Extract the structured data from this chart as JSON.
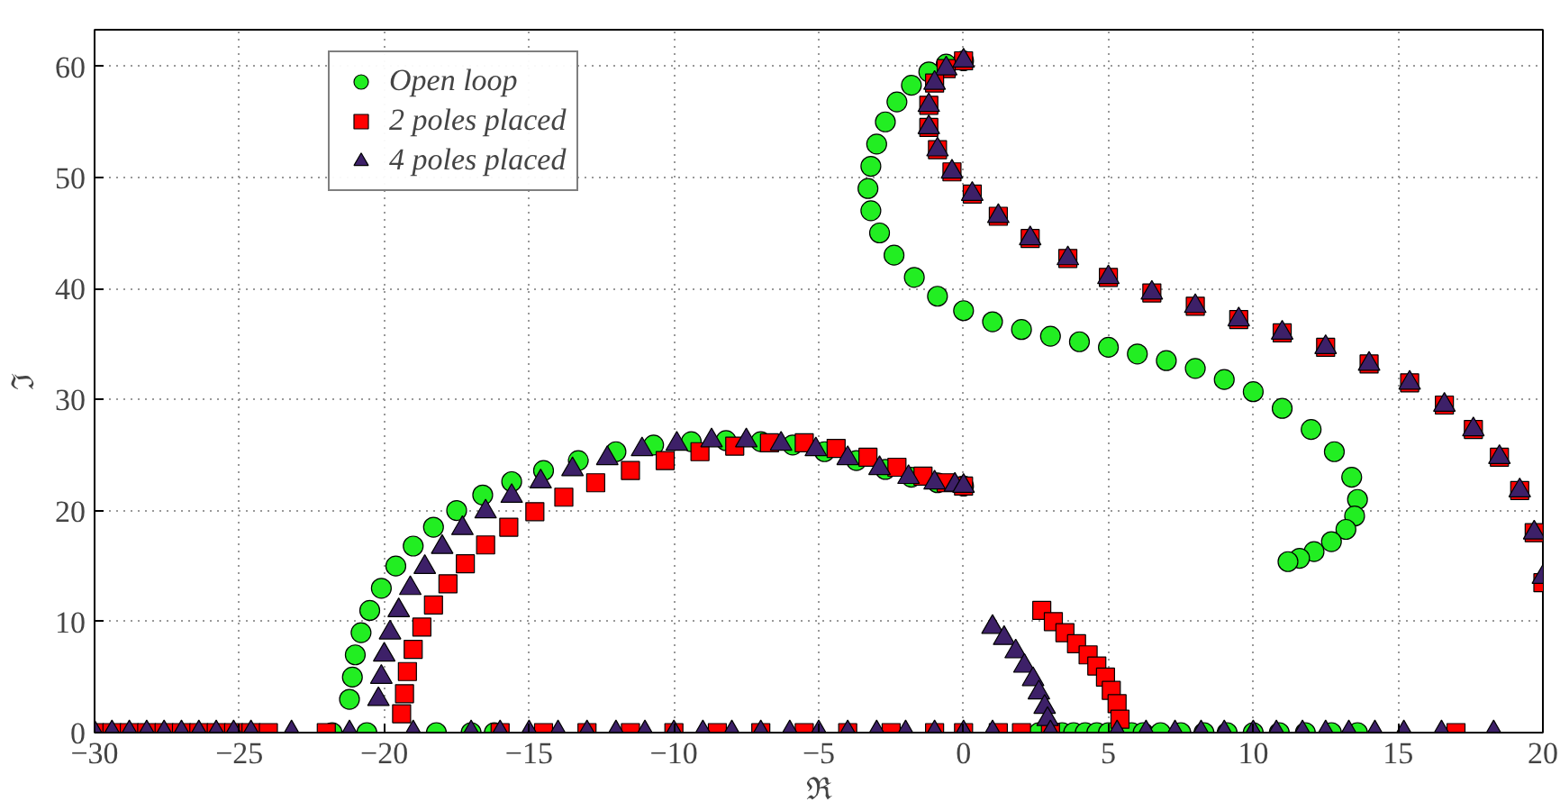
{
  "chart_data": {
    "type": "scatter",
    "xlabel": "ℜ",
    "ylabel": "ℑ",
    "xlim": [
      -30,
      20
    ],
    "ylim": [
      0,
      63.3
    ],
    "xticks": [
      -30,
      -25,
      -20,
      -15,
      -10,
      -5,
      0,
      5,
      10,
      15,
      20
    ],
    "yticks": [
      0,
      10,
      20,
      30,
      40,
      50,
      60
    ],
    "grid": true,
    "legend": "top left",
    "series": [
      {
        "name": "Open loop",
        "color": "#22ee22",
        "marker": "circle",
        "x": [
          -21.2,
          -21.1,
          -21.0,
          -20.8,
          -20.5,
          -20.1,
          -19.6,
          -19.0,
          -18.3,
          -17.5,
          -16.6,
          -15.6,
          -14.5,
          -13.3,
          -12.0,
          -10.7,
          -9.4,
          -8.2,
          -7.0,
          -5.9,
          -4.8,
          -3.7,
          -2.7,
          -1.8,
          -0.9,
          0.0,
          0.0,
          -0.6,
          -1.2,
          -1.8,
          -2.3,
          -2.7,
          -3.0,
          -3.2,
          -3.3,
          -3.2,
          -2.9,
          -2.4,
          -1.7,
          -0.9,
          0.0,
          1.0,
          2.0,
          3.0,
          4.0,
          5.0,
          6.0,
          7.0,
          8.0,
          9.0,
          10.0,
          11.0,
          12.0,
          12.8,
          13.4,
          13.6,
          13.5,
          13.2,
          12.7,
          12.1,
          11.6,
          11.2,
          -21.8,
          -20.6,
          -18.2,
          -17.0,
          -16.2,
          2.6,
          3.4,
          3.8,
          4.2,
          4.6,
          5.0,
          5.8,
          6.2,
          6.8,
          7.5,
          8.3,
          9.1,
          10.0,
          10.9,
          11.8,
          12.7,
          13.6
        ],
        "values": [
          3.0,
          5.0,
          7.0,
          9.0,
          11.0,
          13.0,
          15.0,
          16.8,
          18.5,
          20.0,
          21.4,
          22.6,
          23.6,
          24.5,
          25.3,
          25.9,
          26.2,
          26.3,
          26.2,
          25.9,
          25.3,
          24.5,
          23.7,
          23.0,
          22.5,
          22.2,
          60.5,
          60.2,
          59.5,
          58.3,
          56.8,
          55.0,
          53.0,
          51.0,
          49.0,
          47.0,
          45.0,
          43.0,
          41.0,
          39.3,
          38.0,
          37.0,
          36.3,
          35.7,
          35.2,
          34.7,
          34.1,
          33.5,
          32.8,
          31.8,
          30.7,
          29.2,
          27.3,
          25.3,
          23.0,
          21.0,
          19.5,
          18.3,
          17.2,
          16.3,
          15.7,
          15.4,
          0,
          0,
          0,
          0,
          0,
          0,
          0,
          0,
          0,
          0,
          0,
          0,
          0,
          0,
          0,
          0,
          0,
          0,
          0,
          0,
          0,
          0
        ]
      },
      {
        "name": "2 poles placed",
        "color": "#ff0000",
        "marker": "square",
        "x": [
          -19.4,
          -19.3,
          -19.2,
          -19.0,
          -18.7,
          -18.3,
          -17.8,
          -17.2,
          -16.5,
          -15.7,
          -14.8,
          -13.8,
          -12.7,
          -11.5,
          -10.3,
          -9.1,
          -7.9,
          -6.7,
          -5.5,
          -4.4,
          -3.3,
          -2.3,
          -1.4,
          -0.6,
          0.0,
          0.0,
          -0.6,
          -1.0,
          -1.2,
          -1.2,
          -0.9,
          -0.4,
          0.3,
          1.2,
          2.3,
          3.6,
          5.0,
          6.5,
          8.0,
          9.5,
          11.0,
          12.5,
          14.0,
          15.4,
          16.6,
          17.6,
          18.5,
          19.2,
          19.7,
          20.0,
          2.7,
          3.1,
          3.5,
          3.9,
          4.3,
          4.6,
          4.9,
          5.1,
          5.3,
          5.4,
          -30.0,
          -29.4,
          -28.8,
          -28.2,
          -27.6,
          -27.0,
          -26.4,
          -25.8,
          -25.2,
          -24.6,
          -24.0,
          -22.0,
          -16.0,
          -14.5,
          -13.0,
          -11.5,
          -10.0,
          -8.5,
          -7.0,
          -5.5,
          -4.0,
          -2.5,
          -1.0,
          0.0,
          1.2,
          2.0,
          3.0,
          17.0
        ],
        "values": [
          1.7,
          3.5,
          5.5,
          7.5,
          9.5,
          11.5,
          13.4,
          15.2,
          16.9,
          18.5,
          19.9,
          21.2,
          22.5,
          23.6,
          24.5,
          25.3,
          25.8,
          26.1,
          26.1,
          25.6,
          24.8,
          23.9,
          23.1,
          22.5,
          22.2,
          60.5,
          59.8,
          58.5,
          56.5,
          54.5,
          52.5,
          50.5,
          48.5,
          46.5,
          44.5,
          42.7,
          41.0,
          39.6,
          38.4,
          37.2,
          36.0,
          34.7,
          33.2,
          31.5,
          29.5,
          27.3,
          24.8,
          21.8,
          18.0,
          13.5,
          11.0,
          10.0,
          9.0,
          8.0,
          7.0,
          6.0,
          5.0,
          3.8,
          2.6,
          1.2,
          0,
          0,
          0,
          0,
          0,
          0,
          0,
          0,
          0,
          0,
          0,
          0,
          0,
          0,
          0,
          0,
          0,
          0,
          0,
          0,
          0,
          0,
          0,
          0,
          0,
          0,
          0,
          0
        ]
      },
      {
        "name": "4 poles placed",
        "color": "#3d2068",
        "marker": "triangle",
        "x": [
          -20.2,
          -20.1,
          -20.0,
          -19.8,
          -19.5,
          -19.1,
          -18.6,
          -18.0,
          -17.3,
          -16.5,
          -15.6,
          -14.6,
          -13.5,
          -12.3,
          -11.1,
          -9.9,
          -8.7,
          -7.5,
          -6.3,
          -5.1,
          -4.0,
          -2.9,
          -1.9,
          -1.0,
          -0.3,
          0.0,
          0.0,
          -0.6,
          -1.0,
          -1.2,
          -1.2,
          -0.9,
          -0.4,
          0.3,
          1.2,
          2.3,
          3.6,
          5.0,
          6.5,
          8.0,
          9.5,
          11.0,
          12.5,
          14.0,
          15.4,
          16.6,
          17.6,
          18.5,
          19.2,
          19.7,
          20.0,
          1.0,
          1.4,
          1.8,
          2.1,
          2.4,
          2.6,
          2.8,
          2.9,
          -30.0,
          -29.4,
          -28.8,
          -28.2,
          -27.6,
          -27.0,
          -26.4,
          -25.8,
          -25.2,
          -24.6,
          -23.2,
          -21.2,
          -19.0,
          -17.0,
          -16.0,
          -15.0,
          -14.0,
          -13.0,
          -12.0,
          -11.0,
          -10.0,
          -9.0,
          -8.0,
          -7.0,
          -6.0,
          -5.0,
          -4.0,
          -3.0,
          -2.0,
          -1.0,
          0.0,
          1.0,
          3.0,
          5.3,
          6.3,
          7.3,
          8.2,
          9.0,
          10.0,
          10.8,
          11.7,
          12.5,
          13.3,
          14.2,
          15.2,
          16.5,
          18.3
        ],
        "values": [
          3.0,
          5.0,
          7.0,
          9.0,
          11.0,
          13.0,
          14.9,
          16.7,
          18.4,
          19.9,
          21.3,
          22.6,
          23.7,
          24.7,
          25.5,
          26.0,
          26.3,
          26.3,
          26.0,
          25.5,
          24.7,
          23.8,
          23.0,
          22.5,
          22.3,
          22.2,
          60.5,
          59.8,
          58.5,
          56.5,
          54.5,
          52.5,
          50.5,
          48.5,
          46.5,
          44.5,
          42.7,
          41.0,
          39.6,
          38.4,
          37.2,
          36.0,
          34.7,
          33.2,
          31.5,
          29.5,
          27.3,
          24.8,
          21.8,
          18.0,
          14.0,
          9.5,
          8.5,
          7.3,
          6.0,
          4.8,
          3.6,
          2.3,
          1.2,
          0,
          0,
          0,
          0,
          0,
          0,
          0,
          0,
          0,
          0,
          0,
          0,
          0,
          0,
          0,
          0,
          0,
          0,
          0,
          0,
          0,
          0,
          0,
          0,
          0,
          0,
          0,
          0,
          0,
          0,
          0,
          0,
          0,
          0,
          0,
          0,
          0,
          0,
          0,
          0,
          0,
          0,
          0,
          0,
          0,
          0,
          0
        ]
      }
    ]
  }
}
